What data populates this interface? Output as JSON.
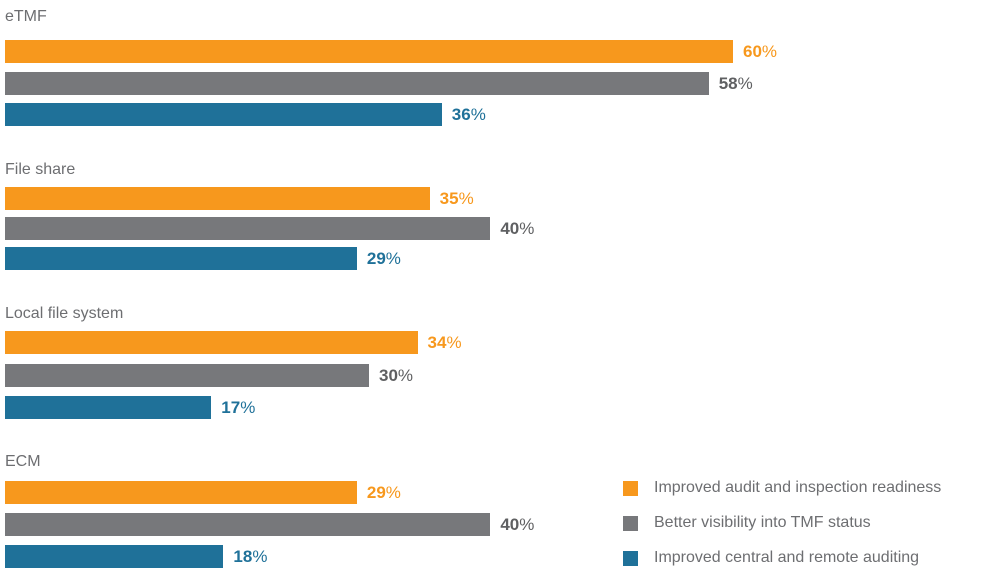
{
  "chart_data": {
    "type": "bar",
    "orientation": "horizontal",
    "title": "",
    "xlabel": "",
    "ylabel": "",
    "xlim": [
      0,
      60
    ],
    "grid": false,
    "legend_position": "bottom-right",
    "value_suffix": "%",
    "categories": [
      "eTMF",
      "File share",
      "Local file system",
      "ECM"
    ],
    "series": [
      {
        "name": "Improved audit and inspection readiness",
        "color": "#f7981d",
        "values": [
          60,
          35,
          34,
          29
        ]
      },
      {
        "name": "Better visibility into TMF status",
        "color": "#77787b",
        "values": [
          58,
          40,
          30,
          40
        ]
      },
      {
        "name": "Improved central and remote auditing",
        "color": "#1f7199",
        "values": [
          36,
          29,
          17,
          18
        ]
      }
    ]
  }
}
